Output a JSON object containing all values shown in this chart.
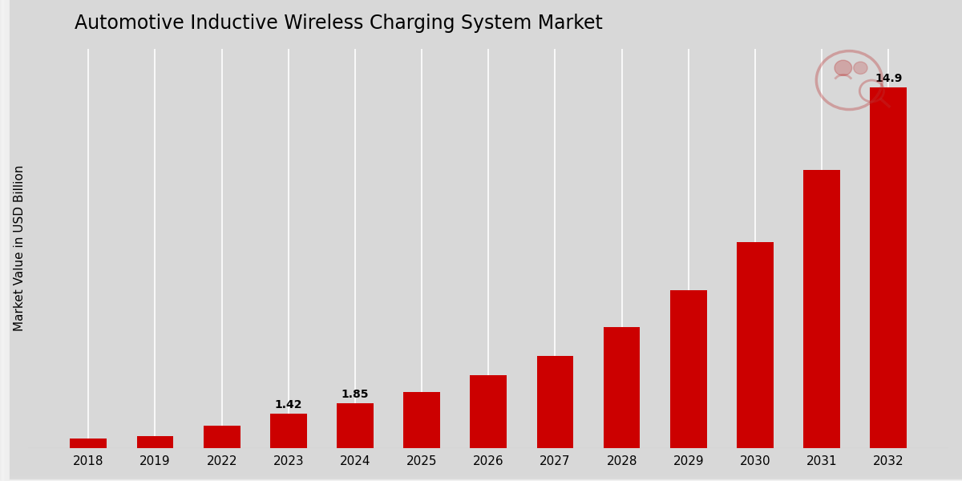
{
  "categories": [
    "2018",
    "2019",
    "2022",
    "2023",
    "2024",
    "2025",
    "2026",
    "2027",
    "2028",
    "2029",
    "2030",
    "2031",
    "2032"
  ],
  "values": [
    0.38,
    0.48,
    0.9,
    1.42,
    1.85,
    2.3,
    3.0,
    3.8,
    5.0,
    6.5,
    8.5,
    11.5,
    14.9
  ],
  "labeled_indices": [
    3,
    4,
    12
  ],
  "labeled_values": [
    "1.42",
    "1.85",
    "14.9"
  ],
  "bar_color": "#CC0000",
  "title": "Automotive Inductive Wireless Charging System Market",
  "ylabel": "Market Value in USD Billion",
  "title_fontsize": 17,
  "label_fontsize": 10,
  "axis_fontsize": 11,
  "background_color": "#D8D8D8",
  "plot_bg_color": "#D8D8D8",
  "ylim": [
    0,
    16.5
  ],
  "grid_color": "#FFFFFF"
}
